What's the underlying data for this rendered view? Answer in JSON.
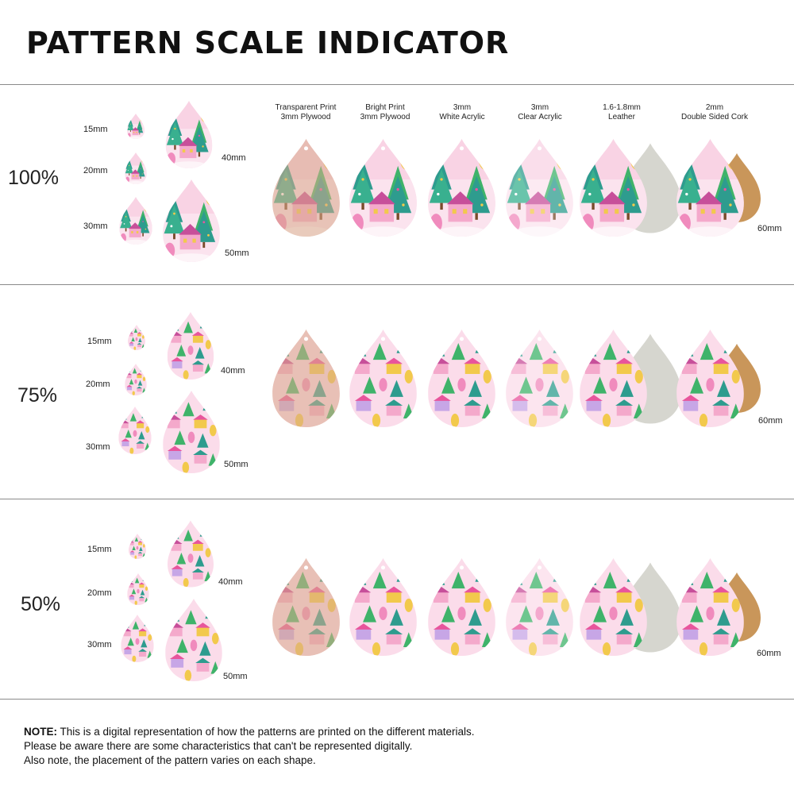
{
  "title": "PATTERN SCALE INDICATOR",
  "materials": [
    {
      "line1": "Transparent Print",
      "line2": "3mm Plywood"
    },
    {
      "line1": "Bright Print",
      "line2": "3mm Plywood"
    },
    {
      "line1": "3mm",
      "line2": "White Acrylic"
    },
    {
      "line1": "3mm",
      "line2": "Clear Acrylic"
    },
    {
      "line1": "1.6-1.8mm",
      "line2": "Leather"
    },
    {
      "line1": "2mm",
      "line2": "Double Sided Cork"
    }
  ],
  "sections": [
    {
      "scale": "100%",
      "sizes": [
        "15mm",
        "20mm",
        "30mm",
        "40mm",
        "50mm"
      ],
      "material_size": "60mm"
    },
    {
      "scale": "75%",
      "sizes": [
        "15mm",
        "20mm",
        "30mm",
        "40mm",
        "50mm"
      ],
      "material_size": "60mm"
    },
    {
      "scale": "50%",
      "sizes": [
        "15mm",
        "20mm",
        "30mm",
        "40mm",
        "50mm"
      ],
      "material_size": "60mm"
    }
  ],
  "note": {
    "lead": "NOTE:",
    "line1": " This is a digital representation of how the patterns are printed on the different materials.",
    "line2": "Please be aware there are some characteristics that can't be represented digitally.",
    "line3": "Also note, the placement of the pattern varies on each shape."
  },
  "colors": {
    "pink": "#f6b5d3",
    "magenta": "#e8559c",
    "teal": "#2e9c8e",
    "green": "#3fb36a",
    "yellow": "#f2c94c",
    "plywood": "#d9a98a",
    "cork": "#c9965a",
    "leather_back": "#d6d6cf"
  }
}
